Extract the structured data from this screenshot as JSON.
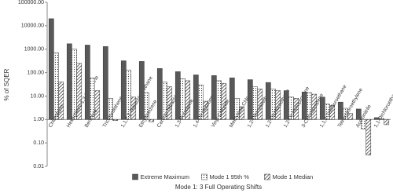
{
  "chart_data": {
    "type": "bar",
    "y_label": "% of SQER",
    "x_label": "Mode 1: 3 Full Operating Shifts",
    "log_scale": true,
    "baseline": 1,
    "legend": "bottom",
    "categories": [
      "Chloroform",
      "Hexachloro-1,3-butadiene",
      "Benzene",
      "Trichloroethene",
      "1,1,2,2-Tetrachloroethane",
      "Ethylbenzene",
      "Carbon Tetrachloride",
      "1,3-Butadiene",
      "1,4-Dichlorobenzene",
      "Vinyl Chloride",
      "Methylene Chloride",
      "1,2-Dibromoethane",
      "1,2-Dichloroethane",
      "1,2-Dichloropropane",
      "3-Chloropropene",
      "1,1,2-Trichloroethane",
      "Tetrachloroethylene",
      "Acetonitrile",
      "1,1-Dichloroethane"
    ],
    "series": [
      {
        "name": "Extreme Maximum",
        "color": "#595959",
        "pattern": "solid",
        "values": [
          20000,
          1700,
          1500,
          1300,
          320,
          300,
          150,
          110,
          80,
          75,
          60,
          50,
          38,
          17,
          15,
          9,
          5.5,
          2.8,
          1.2
        ]
      },
      {
        "name": "Mode 1 95th %",
        "color": "#ffffff",
        "pattern": "dots",
        "values": [
          700,
          1000,
          60,
          8,
          130,
          14,
          40,
          55,
          30,
          45,
          8,
          25,
          20,
          9,
          14,
          4.5,
          3,
          0.4,
          1.1
        ]
      },
      {
        "name": "Mode 1 Median",
        "color": "#ffffff",
        "pattern": "hatch",
        "values": [
          40,
          250,
          17,
          0.9,
          9,
          0.8,
          25,
          45,
          6,
          35,
          3.5,
          20,
          17,
          8,
          12,
          4,
          1.8,
          0.03,
          0.6
        ]
      }
    ],
    "ylim": [
      0.01,
      100000
    ],
    "yticks": [
      0.01,
      {
        "value": 0.1,
        "label": "0.10"
      },
      {
        "value": 1,
        "label": "1.00"
      },
      {
        "value": 10,
        "label": "10.00"
      },
      {
        "value": 100,
        "label": "100.00"
      },
      {
        "value": 1000,
        "label": "1000.00"
      },
      {
        "value": 10000,
        "label": "10000.00"
      },
      {
        "value": 100000,
        "label": "100000.00"
      }
    ],
    "grid": false
  }
}
